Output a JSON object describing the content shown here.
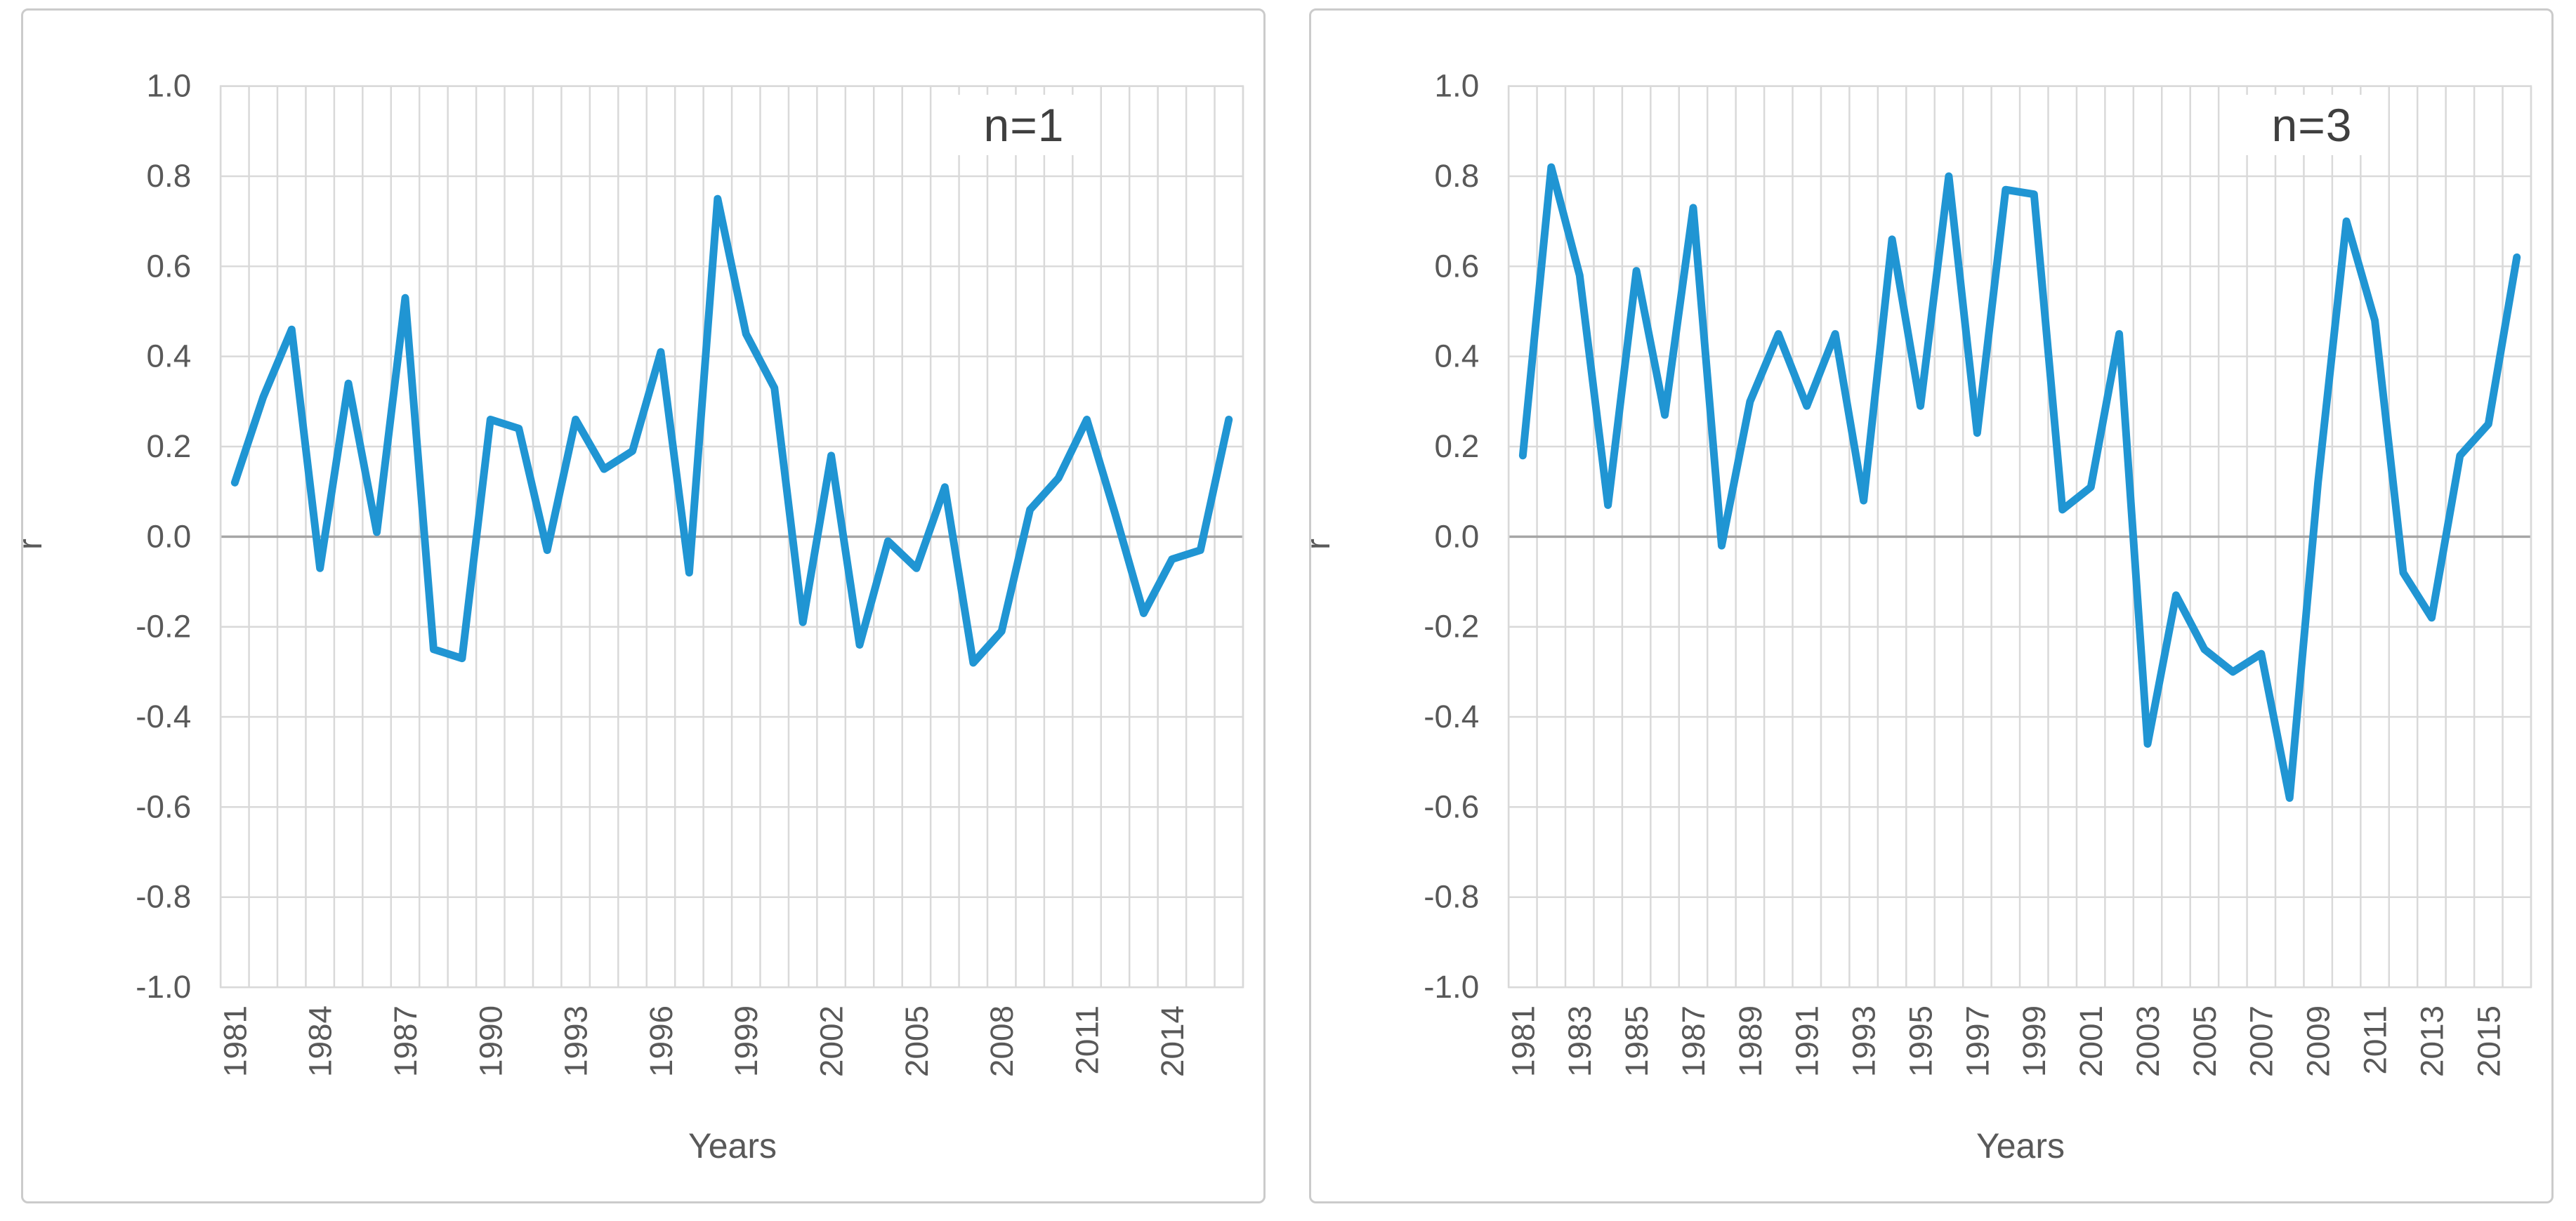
{
  "chart_data": [
    {
      "type": "line",
      "annotation": "n=1",
      "xlabel": "Years",
      "ylabel": "r",
      "ylim": [
        -1.0,
        1.0
      ],
      "ytick_labels": [
        "1.0",
        "0.8",
        "0.6",
        "0.4",
        "0.2",
        "0.0",
        "-0.2",
        "-0.4",
        "-0.6",
        "-0.8",
        "-1.0"
      ],
      "years": [
        1981,
        1982,
        1983,
        1984,
        1985,
        1986,
        1987,
        1988,
        1989,
        1990,
        1991,
        1992,
        1993,
        1994,
        1995,
        1996,
        1997,
        1998,
        1999,
        2000,
        2001,
        2002,
        2003,
        2004,
        2005,
        2006,
        2007,
        2008,
        2009,
        2010,
        2011,
        2012,
        2013,
        2014,
        2015,
        2016
      ],
      "values": [
        0.12,
        0.31,
        0.46,
        -0.07,
        0.34,
        0.01,
        0.53,
        -0.25,
        -0.27,
        0.26,
        0.24,
        -0.03,
        0.26,
        0.15,
        0.19,
        0.41,
        -0.08,
        0.75,
        0.45,
        0.33,
        -0.19,
        0.18,
        -0.24,
        -0.01,
        -0.07,
        0.11,
        -0.28,
        -0.21,
        0.06,
        0.13,
        0.26,
        0.05,
        -0.17,
        -0.05,
        -0.03,
        0.26
      ],
      "xtick_labels": [
        "1981",
        "1984",
        "1987",
        "1990",
        "1993",
        "1996",
        "1999",
        "2002",
        "2005",
        "2008",
        "2011",
        "2014"
      ],
      "xtick_step": 3,
      "grid": true,
      "legend": "none",
      "line_color": "#2095d3",
      "grid_color": "#d9d9d9",
      "zero_line_color": "#a6a6a6",
      "tick_color": "#595959"
    },
    {
      "type": "line",
      "annotation": "n=3",
      "xlabel": "Years",
      "ylabel": "r",
      "ylim": [
        -1.0,
        1.0
      ],
      "ytick_labels": [
        "1.0",
        "0.8",
        "0.6",
        "0.4",
        "0.2",
        "0.0",
        "-0.2",
        "-0.4",
        "-0.6",
        "-0.8",
        "-1.0"
      ],
      "years": [
        1981,
        1982,
        1983,
        1984,
        1985,
        1986,
        1987,
        1988,
        1989,
        1990,
        1991,
        1992,
        1993,
        1994,
        1995,
        1996,
        1997,
        1998,
        1999,
        2000,
        2001,
        2002,
        2003,
        2004,
        2005,
        2006,
        2007,
        2008,
        2009,
        2010,
        2011,
        2012,
        2013,
        2014,
        2015,
        2016
      ],
      "values": [
        0.18,
        0.82,
        0.58,
        0.07,
        0.59,
        0.27,
        0.73,
        -0.02,
        0.3,
        0.45,
        0.29,
        0.45,
        0.08,
        0.66,
        0.29,
        0.8,
        0.23,
        0.77,
        0.76,
        0.06,
        0.11,
        0.45,
        -0.46,
        -0.13,
        -0.25,
        -0.3,
        -0.26,
        -0.58,
        0.12,
        0.7,
        0.48,
        -0.08,
        -0.18,
        0.18,
        0.25,
        0.62
      ],
      "xtick_labels": [
        "1981",
        "1983",
        "1985",
        "1987",
        "1989",
        "1991",
        "1993",
        "1995",
        "1997",
        "1999",
        "2001",
        "2003",
        "2005",
        "2007",
        "2009",
        "2011",
        "2013",
        "2015"
      ],
      "xtick_step": 2,
      "grid": true,
      "legend": "none",
      "line_color": "#2095d3",
      "grid_color": "#d9d9d9",
      "zero_line_color": "#a6a6a6",
      "tick_color": "#595959"
    }
  ]
}
